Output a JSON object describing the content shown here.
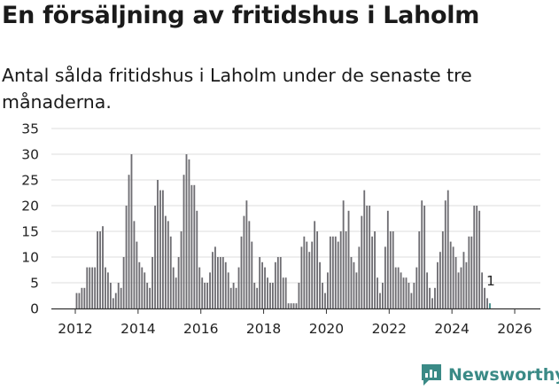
{
  "title": "En försäljning av fritidshus i Laholm",
  "subtitle": "Antal sålda fritidshus i Laholm under de senaste tre månaderna.",
  "brand": {
    "name": "Newsworthy",
    "icon": "newsworthy-logo-icon"
  },
  "colors": {
    "bar": "#6e6d72",
    "highlight": "#3a8a86",
    "grid": "#dddddd",
    "axis": "#333333"
  },
  "chart_data": {
    "type": "bar",
    "title": "En försäljning av fritidshus i Laholm",
    "subtitle": "Antal sålda fritidshus i Laholm under de senaste tre månaderna.",
    "xlabel": "",
    "ylabel": "",
    "ylim": [
      0,
      35
    ],
    "yticks": [
      0,
      5,
      10,
      15,
      20,
      25,
      30,
      35
    ],
    "xticks": [
      2012,
      2014,
      2016,
      2018,
      2020,
      2022,
      2024,
      2026
    ],
    "x_start": 2012.0,
    "x_step_months": 1,
    "grid": true,
    "last_value_label": "1",
    "series": [
      {
        "name": "Antal sålda fritidshus",
        "values": [
          3,
          3,
          4,
          4,
          8,
          8,
          8,
          8,
          15,
          15,
          16,
          8,
          7,
          5,
          2,
          3,
          5,
          4,
          10,
          20,
          26,
          30,
          17,
          13,
          9,
          8,
          7,
          5,
          4,
          10,
          20,
          25,
          23,
          23,
          18,
          17,
          14,
          8,
          6,
          10,
          15,
          26,
          30,
          29,
          24,
          24,
          19,
          8,
          6,
          5,
          5,
          7,
          11,
          12,
          10,
          10,
          10,
          9,
          7,
          4,
          5,
          4,
          8,
          14,
          18,
          21,
          17,
          13,
          5,
          4,
          10,
          9,
          8,
          6,
          5,
          5,
          9,
          10,
          10,
          6,
          6,
          1,
          1,
          1,
          1,
          5,
          12,
          14,
          13,
          11,
          13,
          17,
          15,
          9,
          5,
          3,
          7,
          14,
          14,
          14,
          13,
          15,
          21,
          15,
          19,
          10,
          9,
          7,
          12,
          18,
          23,
          20,
          20,
          14,
          15,
          6,
          3,
          5,
          12,
          19,
          15,
          15,
          8,
          8,
          7,
          6,
          6,
          5,
          3,
          5,
          8,
          15,
          21,
          20,
          7,
          4,
          2,
          4,
          9,
          11,
          15,
          21,
          23,
          13,
          12,
          10,
          7,
          8,
          11,
          9,
          14,
          14,
          20,
          20,
          19,
          7,
          4,
          2,
          1
        ]
      }
    ]
  }
}
